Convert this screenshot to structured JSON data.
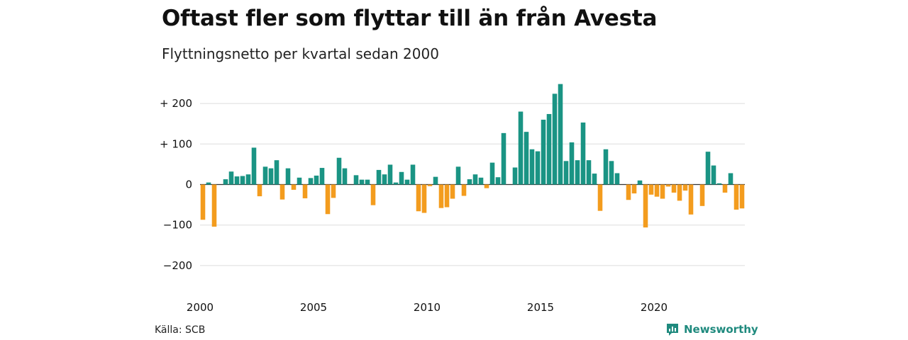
{
  "header": {
    "title": "Oftast fler som flyttar till än från Avesta",
    "subtitle": "Flyttningsnetto per kvartal sedan 2000"
  },
  "footer": {
    "source": "Källa: SCB",
    "brand": "Newsworthy"
  },
  "colors": {
    "positive": "#1a9484",
    "negative": "#f39c1e",
    "grid": "#dddddd",
    "zero_line": "#333333"
  },
  "chart_data": {
    "type": "bar",
    "title": "Oftast fler som flyttar till än från Avesta",
    "subtitle": "Flyttningsnetto per kvartal sedan 2000",
    "xlabel": "",
    "ylabel": "",
    "x_start": "2000 Q1",
    "x_ticks": [
      "2000",
      "2005",
      "2010",
      "2015",
      "2020"
    ],
    "y_ticks": [
      {
        "value": 200,
        "label": "+ 200"
      },
      {
        "value": 100,
        "label": "+ 100"
      },
      {
        "value": 0,
        "label": "0"
      },
      {
        "value": -100,
        "label": "−100"
      },
      {
        "value": -200,
        "label": "−200"
      }
    ],
    "ylim": [
      -225,
      250
    ],
    "grid": true,
    "values": [
      -87,
      5,
      -104,
      0,
      13,
      32,
      20,
      21,
      25,
      91,
      -29,
      44,
      40,
      60,
      -37,
      40,
      -13,
      17,
      -34,
      16,
      22,
      41,
      -73,
      -33,
      66,
      40,
      0,
      23,
      12,
      12,
      -51,
      36,
      25,
      49,
      5,
      31,
      12,
      49,
      -66,
      -70,
      -4,
      19,
      -58,
      -56,
      -35,
      44,
      -28,
      13,
      25,
      17,
      -9,
      54,
      18,
      127,
      0,
      42,
      180,
      130,
      87,
      82,
      160,
      174,
      224,
      248,
      58,
      104,
      60,
      153,
      60,
      27,
      -65,
      87,
      58,
      28,
      0,
      -38,
      -22,
      10,
      -106,
      -25,
      -30,
      -35,
      -5,
      -20,
      -40,
      -15,
      -74,
      0,
      -53,
      81,
      47,
      3,
      -20,
      28,
      -62,
      -59
    ]
  }
}
